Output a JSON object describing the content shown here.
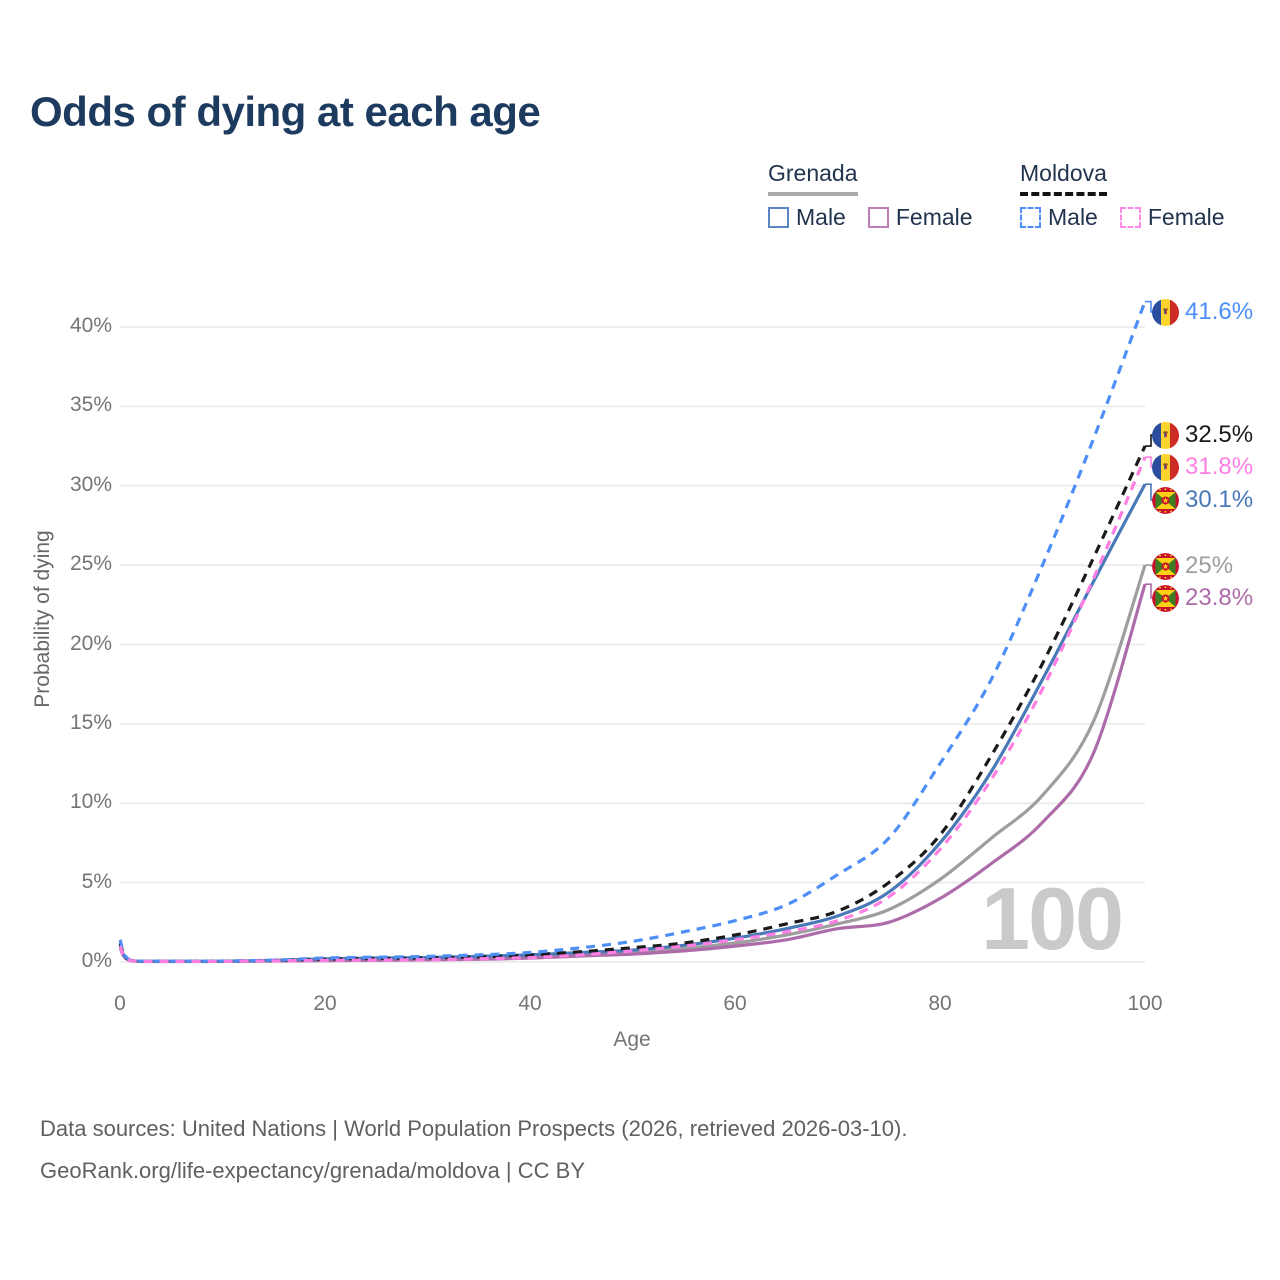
{
  "title": "Odds of dying at each age",
  "legend": {
    "groups": [
      {
        "name": "Grenada",
        "line_style": "solid",
        "underline_color": "#a9a9a9",
        "items": [
          {
            "label": "Male",
            "color": "#5b86c3"
          },
          {
            "label": "Female",
            "color": "#bb7cb8"
          }
        ]
      },
      {
        "name": "Moldova",
        "line_style": "dashed",
        "underline_color": "#141414",
        "items": [
          {
            "label": "Male",
            "color": "#4d8ef7"
          },
          {
            "label": "Female",
            "color": "#ff8ae6"
          }
        ]
      }
    ]
  },
  "chart_data": {
    "type": "line",
    "title": "Odds of dying at each age",
    "xlabel": "Age",
    "ylabel": "Probability of dying",
    "xlim": [
      0,
      100
    ],
    "ylim": [
      0,
      42
    ],
    "x_ticks": [
      0,
      20,
      40,
      60,
      80,
      100
    ],
    "y_ticks_pct": [
      0,
      5,
      10,
      15,
      20,
      25,
      30,
      35,
      40
    ],
    "y_tick_labels": [
      "0%",
      "5%",
      "10%",
      "15%",
      "20%",
      "25%",
      "30%",
      "35%",
      "40%"
    ],
    "grid": true,
    "legend_position": "top-right",
    "watermark": "100",
    "ages": [
      0,
      1,
      5,
      10,
      15,
      20,
      25,
      30,
      35,
      40,
      45,
      50,
      55,
      60,
      65,
      70,
      75,
      80,
      85,
      90,
      95,
      100
    ],
    "series": [
      {
        "name": "Grenada Total",
        "country": "Grenada",
        "sex": "Total",
        "flag": "grenada",
        "style": "solid",
        "color": "#9e9e9e",
        "end_label": "25%",
        "end_value": 25,
        "values": [
          1.0,
          0.09,
          0.04,
          0.04,
          0.08,
          0.15,
          0.18,
          0.2,
          0.26,
          0.35,
          0.45,
          0.6,
          0.85,
          1.2,
          1.7,
          2.4,
          3.3,
          5.2,
          7.8,
          10.5,
          15.2,
          25
        ]
      },
      {
        "name": "Grenada Female",
        "country": "Grenada",
        "sex": "Female",
        "flag": "grenada",
        "style": "solid",
        "color": "#ad6ca9",
        "end_label": "23.8%",
        "end_value": 23.8,
        "values": [
          0.9,
          0.08,
          0.03,
          0.04,
          0.06,
          0.09,
          0.11,
          0.13,
          0.17,
          0.25,
          0.38,
          0.5,
          0.7,
          1.0,
          1.4,
          2.1,
          2.5,
          4.0,
          6.2,
          8.8,
          13.2,
          23.8
        ]
      },
      {
        "name": "Grenada Male",
        "country": "Grenada",
        "sex": "Male",
        "flag": "grenada",
        "style": "solid",
        "color": "#4a79b8",
        "end_label": "30.1%",
        "end_value": 30.1,
        "values": [
          1.1,
          0.1,
          0.04,
          0.05,
          0.1,
          0.2,
          0.25,
          0.28,
          0.35,
          0.45,
          0.6,
          0.75,
          1.05,
          1.5,
          2.1,
          2.9,
          4.4,
          7.5,
          12.0,
          17.8,
          24.0,
          30.1
        ]
      },
      {
        "name": "Moldova Total",
        "country": "Moldova",
        "sex": "Total",
        "flag": "moldova",
        "style": "dashed",
        "color": "#1a1a1a",
        "end_label": "32.5%",
        "end_value": 32.5,
        "values": [
          1.2,
          0.1,
          0.04,
          0.05,
          0.09,
          0.18,
          0.22,
          0.26,
          0.33,
          0.45,
          0.65,
          0.9,
          1.2,
          1.7,
          2.4,
          3.2,
          5.0,
          8.0,
          13.0,
          18.8,
          25.5,
          32.5
        ]
      },
      {
        "name": "Moldova Male",
        "country": "Moldova",
        "sex": "Male",
        "flag": "moldova",
        "style": "dashed",
        "color": "#4d8ef7",
        "end_label": "41.6%",
        "end_value": 41.6,
        "values": [
          1.4,
          0.12,
          0.05,
          0.06,
          0.12,
          0.25,
          0.3,
          0.35,
          0.45,
          0.6,
          0.9,
          1.3,
          1.9,
          2.6,
          3.6,
          5.5,
          7.8,
          12.5,
          17.8,
          25.0,
          33.0,
          41.6
        ]
      },
      {
        "name": "Moldova Female",
        "country": "Moldova",
        "sex": "Female",
        "flag": "moldova",
        "style": "dashed",
        "color": "#ff7ee3",
        "end_label": "31.8%",
        "end_value": 31.8,
        "values": [
          1.0,
          0.09,
          0.04,
          0.04,
          0.07,
          0.1,
          0.12,
          0.15,
          0.2,
          0.28,
          0.45,
          0.7,
          1.0,
          1.4,
          1.9,
          2.6,
          4.1,
          7.1,
          11.5,
          17.2,
          24.2,
          31.8
        ]
      }
    ]
  },
  "footer": {
    "line1": "Data sources: United Nations | World Population Prospects (2026, retrieved 2026-03-10).",
    "line2": "GeoRank.org/life-expectancy/grenada/moldova | CC BY"
  }
}
